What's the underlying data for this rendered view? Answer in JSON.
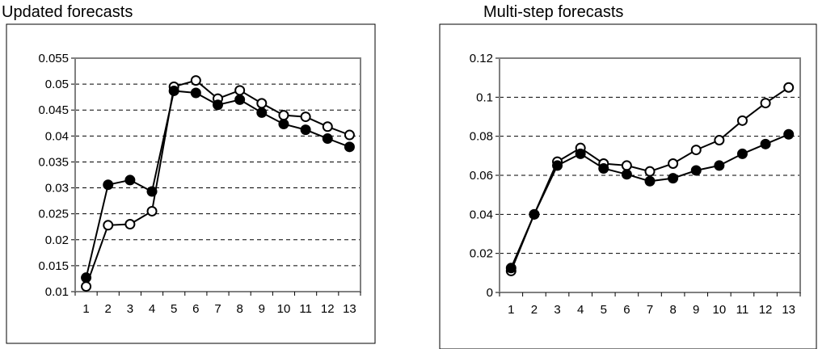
{
  "chart_data": [
    {
      "type": "line",
      "title": "Updated forecasts",
      "xlabel": "",
      "ylabel": "",
      "categories": [
        "1",
        "2",
        "3",
        "4",
        "5",
        "6",
        "7",
        "8",
        "9",
        "10",
        "11",
        "12",
        "13"
      ],
      "yticks": [
        "0.01",
        "0.015",
        "0.02",
        "0.025",
        "0.03",
        "0.035",
        "0.04",
        "0.045",
        "0.05",
        "0.055"
      ],
      "ylim": [
        0.01,
        0.055
      ],
      "grid": "horizontal dashed",
      "legend": "none",
      "series": [
        {
          "marker": "open-circle",
          "values": [
            0.011,
            0.0228,
            0.023,
            0.0255,
            0.0495,
            0.0507,
            0.0472,
            0.0488,
            0.0463,
            0.044,
            0.0437,
            0.0418,
            0.0402
          ]
        },
        {
          "marker": "filled-circle",
          "values": [
            0.0127,
            0.0306,
            0.0315,
            0.0293,
            0.0487,
            0.0483,
            0.046,
            0.047,
            0.0445,
            0.0423,
            0.0412,
            0.0395,
            0.0379
          ]
        }
      ]
    },
    {
      "type": "line",
      "title": "Multi-step forecasts",
      "xlabel": "",
      "ylabel": "",
      "categories": [
        "1",
        "2",
        "3",
        "4",
        "5",
        "6",
        "7",
        "8",
        "9",
        "10",
        "11",
        "12",
        "13"
      ],
      "yticks": [
        "0",
        "0.02",
        "0.04",
        "0.06",
        "0.08",
        "0.1",
        "0.12"
      ],
      "ylim": [
        0,
        0.12
      ],
      "grid": "horizontal dashed",
      "legend": "none",
      "series": [
        {
          "marker": "open-circle",
          "values": [
            0.011,
            0.04,
            0.067,
            0.074,
            0.066,
            0.065,
            0.062,
            0.066,
            0.073,
            0.078,
            0.088,
            0.097,
            0.105
          ]
        },
        {
          "marker": "filled-circle",
          "values": [
            0.0125,
            0.04,
            0.065,
            0.071,
            0.0635,
            0.0605,
            0.057,
            0.0585,
            0.0625,
            0.065,
            0.071,
            0.076,
            0.081
          ]
        }
      ]
    }
  ]
}
